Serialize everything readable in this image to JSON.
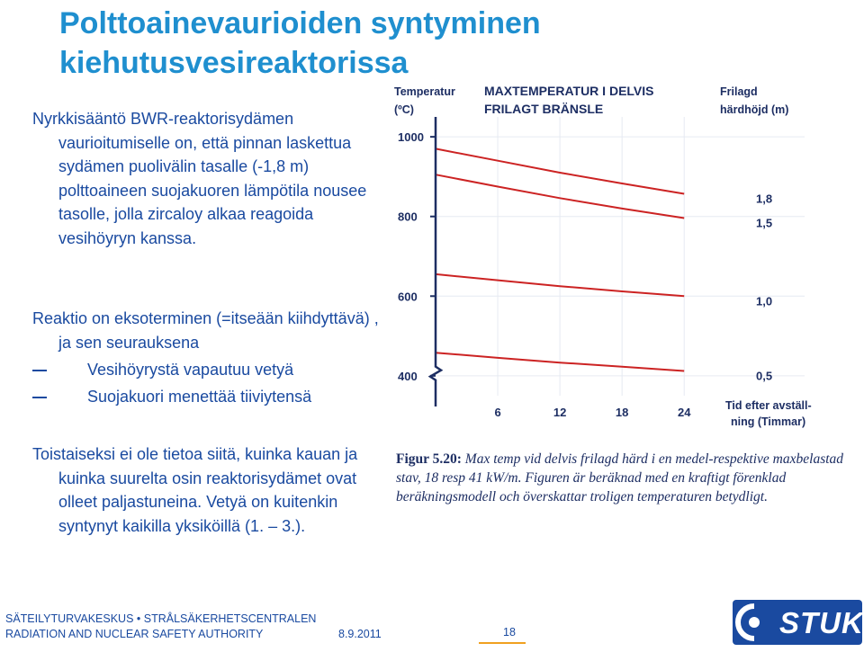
{
  "title": {
    "line1": "Polttoainevaurioiden syntyminen",
    "line2": "kiehutusvesireaktorissa"
  },
  "block1": {
    "text": "Nyrkkisääntö BWR-reaktorisydämen vaurioitumiselle on, että pinnan laskettua sydämen puolivälin tasalle   (-1,8 m) polttoaineen suojakuoren lämpötila nousee tasolle, jolla zircaloy alkaa reagoida vesihöyryn kanssa."
  },
  "block2": {
    "text": "Reaktio on eksoterminen (=itseään kiihdyttävä) , ja sen seurauksena",
    "bullets": [
      "Vesihöyrystä vapautuu vetyä",
      "Suojakuori menettää tiiviytensä"
    ]
  },
  "block3": {
    "text": "Toistaiseksi ei ole tietoa siitä, kuinka kauan ja kuinka suurelta osin reaktorisydämet ovat olleet paljastuneina. Vetyä on kuitenkin syntynyt kaikilla yksiköillä (1. – 3.)."
  },
  "chart_data": {
    "type": "line",
    "title": "MAXTEMPERATUR I DELVIS FRILAGT BRÄNSLE",
    "ylabel": "Temperatur (ºC)",
    "xlabel": "Tid efter avställ-ning (Timmar)",
    "legend_title": "Frilagd härdhöjd (m)",
    "x_ticks": [
      "6",
      "12",
      "18",
      "24"
    ],
    "y_ticks": [
      "1000",
      "800",
      "600",
      "400"
    ],
    "xlim": [
      0,
      26.5
    ],
    "ylim": [
      350,
      1050
    ],
    "series": [
      {
        "name": "1,8",
        "x": [
          0,
          6,
          12,
          18,
          24
        ],
        "y": [
          970,
          940,
          910,
          883,
          857
        ]
      },
      {
        "name": "1,5",
        "x": [
          0,
          6,
          12,
          18,
          24
        ],
        "y": [
          905,
          875,
          846,
          820,
          796
        ]
      },
      {
        "name": "1,0",
        "x": [
          0,
          6,
          12,
          18,
          24
        ],
        "y": [
          655,
          640,
          625,
          612,
          600
        ]
      },
      {
        "name": "0,5",
        "x": [
          0,
          6,
          12,
          18,
          24
        ],
        "y": [
          458,
          445,
          433,
          423,
          412
        ]
      }
    ],
    "line_color": "#cc2323",
    "axis_color": "#1d2e63"
  },
  "caption": {
    "label": "Figur 5.20:",
    "text": " Max temp vid delvis frilagd härd i en medel-respektive maxbelastad stav, 18 resp 41 kW/m. Figuren är beräknad med en kraftigt förenklad beräkningsmodell och överskattar troligen temperaturen betydligt."
  },
  "footer": {
    "org_line": "SÄTEILYTURVAKESKUS • STRÅLSÄKERHETSCENTRALEN",
    "authority": "RADIATION AND NUCLEAR SAFETY AUTHORITY",
    "date": "8.9.2011",
    "page": "18",
    "logo_text": "STUK"
  },
  "colors": {
    "title": "#1f8fcf",
    "body_text": "#1a4aa0",
    "footer_accent": "#f0a020"
  }
}
